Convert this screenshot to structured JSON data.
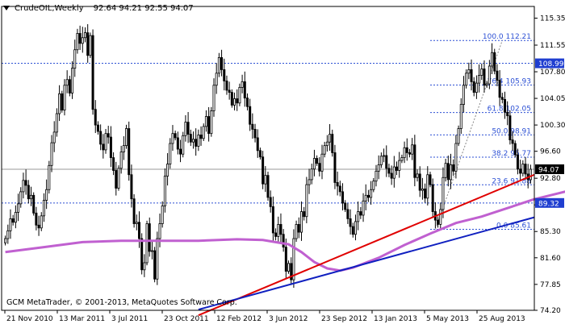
{
  "header": {
    "symbol": "CrudeOIL,Weekly",
    "ohlc": "92.64 94.21 92.55 94.07",
    "open": 92.64,
    "high": 94.21,
    "low": 92.55,
    "close": 94.07
  },
  "copyright": "GCM MetaTrader, © 2001-2013, MetaQuotes Software Corp.",
  "colors": {
    "background": "#ffffff",
    "candle": "#000000",
    "ma_line": "#c060d0",
    "trend_red": "#e00000",
    "trend_blue": "#1020c0",
    "fib_level": "#2b4fd4",
    "blue_tag_bg": "#1f3ed0",
    "current_price_tag_bg": "#000000"
  },
  "chart_data": {
    "type": "candlestick",
    "symbol": "CrudeOIL",
    "timeframe": "Weekly",
    "ylim": [
      74.2,
      117.0
    ],
    "yticks": [
      "115.35",
      "111.55",
      "107.80",
      "104.05",
      "100.30",
      "96.60",
      "92.80",
      "89.05",
      "85.30",
      "81.60",
      "77.85",
      "74.20"
    ],
    "xticks": [
      "21 Nov 2010",
      "13 Mar 2011",
      "3 Jul 2011",
      "23 Oct 2011",
      "12 Feb 2012",
      "3 Jun 2012",
      "23 Sep 2012",
      "13 Jan 2013",
      "5 May 2013",
      "25 Aug 2013"
    ],
    "current_price": "94.07",
    "price_tags": [
      {
        "value": "108.99"
      },
      {
        "value": "89.32"
      }
    ],
    "fibonacci_levels": [
      {
        "label": "100.0 112.21",
        "value": 112.21
      },
      {
        "label": "76.4 105.93",
        "value": 105.93
      },
      {
        "label": "61.8 102.05",
        "value": 102.05
      },
      {
        "label": "50.0 98.91",
        "value": 98.91
      },
      {
        "label": "38.2 95.77",
        "value": 95.77
      },
      {
        "label": "23.6 91.88",
        "value": 91.88
      },
      {
        "label": "0.0 85.61",
        "value": 85.61
      }
    ],
    "closes": [
      84.3,
      85.4,
      87.1,
      86.6,
      88.0,
      89.2,
      90.9,
      92.5,
      91.8,
      89.9,
      90.4,
      87.9,
      86.2,
      85.8,
      87.5,
      89.7,
      91.2,
      94.6,
      97.8,
      99.3,
      101.9,
      104.7,
      102.4,
      105.9,
      106.7,
      104.8,
      108.3,
      110.9,
      113.2,
      111.8,
      112.6,
      113.3,
      110.1,
      112.9,
      102.5,
      100.3,
      99.4,
      97.6,
      96.8,
      99.1,
      98.6,
      95.7,
      93.9,
      91.4,
      94.2,
      96.5,
      97.4,
      99.8,
      93.3,
      89.9,
      86.4,
      86.6,
      84.3,
      79.9,
      80.9,
      86.4,
      82.5,
      82.6,
      78.6,
      84.3,
      86.4,
      88.9,
      93.1,
      94.8,
      97.7,
      99.1,
      98.5,
      96.9,
      96.2,
      98.8,
      100.7,
      99.0,
      97.9,
      98.3,
      97.3,
      98.9,
      98.4,
      100.1,
      101.5,
      99.1,
      102.3,
      105.9,
      107.6,
      109.8,
      108.1,
      106.5,
      105.2,
      104.9,
      103.1,
      104.0,
      103.4,
      105.6,
      106.4,
      104.1,
      102.9,
      100.4,
      99.7,
      98.5,
      96.7,
      95.8,
      92.0,
      93.2,
      90.1,
      88.8,
      85.1,
      84.6,
      86.3,
      84.9,
      83.1,
      79.7,
      80.8,
      78.5,
      84.3,
      86.3,
      85.2,
      88.1,
      87.4,
      91.9,
      92.6,
      94.1,
      95.6,
      94.9,
      93.8,
      96.2,
      97.4,
      97.9,
      99.0,
      96.4,
      92.2,
      91.7,
      90.9,
      89.3,
      88.4,
      87.1,
      86.0,
      84.9,
      86.7,
      88.1,
      87.6,
      89.6,
      90.4,
      90.1,
      91.2,
      92.4,
      93.8,
      94.7,
      95.9,
      96.0,
      94.2,
      93.5,
      92.8,
      94.4,
      93.9,
      95.3,
      95.7,
      97.1,
      96.4,
      96.2,
      97.5,
      92.9,
      93.4,
      91.1,
      91.3,
      90.0,
      93.3,
      91.9,
      88.1,
      86.9,
      86.3,
      88.4,
      92.9,
      94.9,
      92.6,
      94.7,
      93.8,
      97.7,
      99.8,
      103.2,
      105.9,
      107.6,
      108.1,
      106.4,
      104.9,
      106.2,
      107.3,
      108.2,
      105.9,
      106.1,
      108.6,
      110.5,
      107.9,
      106.6,
      104.2,
      103.9,
      102.1,
      101.6,
      98.2,
      97.7,
      96.1,
      94.1,
      93.5,
      94.8,
      93.4,
      92.6,
      94.07
    ],
    "moving_average": [
      [
        0,
        82.4
      ],
      [
        15,
        83.1
      ],
      [
        30,
        83.8
      ],
      [
        45,
        84.0
      ],
      [
        60,
        84.0
      ],
      [
        75,
        84.0
      ],
      [
        90,
        84.2
      ],
      [
        100,
        84.1
      ],
      [
        110,
        83.5
      ],
      [
        115,
        82.4
      ],
      [
        120,
        81.0
      ],
      [
        125,
        80.1
      ],
      [
        130,
        79.8
      ],
      [
        135,
        80.2
      ],
      [
        145,
        81.6
      ],
      [
        155,
        83.4
      ],
      [
        165,
        85.0
      ],
      [
        175,
        86.5
      ],
      [
        185,
        87.4
      ],
      [
        195,
        88.6
      ],
      [
        205,
        89.8
      ],
      [
        215,
        90.7
      ],
      [
        225,
        91.6
      ],
      [
        235,
        92.3
      ],
      [
        245,
        93.0
      ]
    ],
    "trendlines": [
      {
        "color": "red",
        "from": [
          75,
          73.5
        ],
        "to": [
          245,
          93.3
        ]
      },
      {
        "color": "blue",
        "from": [
          75,
          74.3
        ],
        "to": [
          245,
          87.3
        ]
      }
    ]
  }
}
